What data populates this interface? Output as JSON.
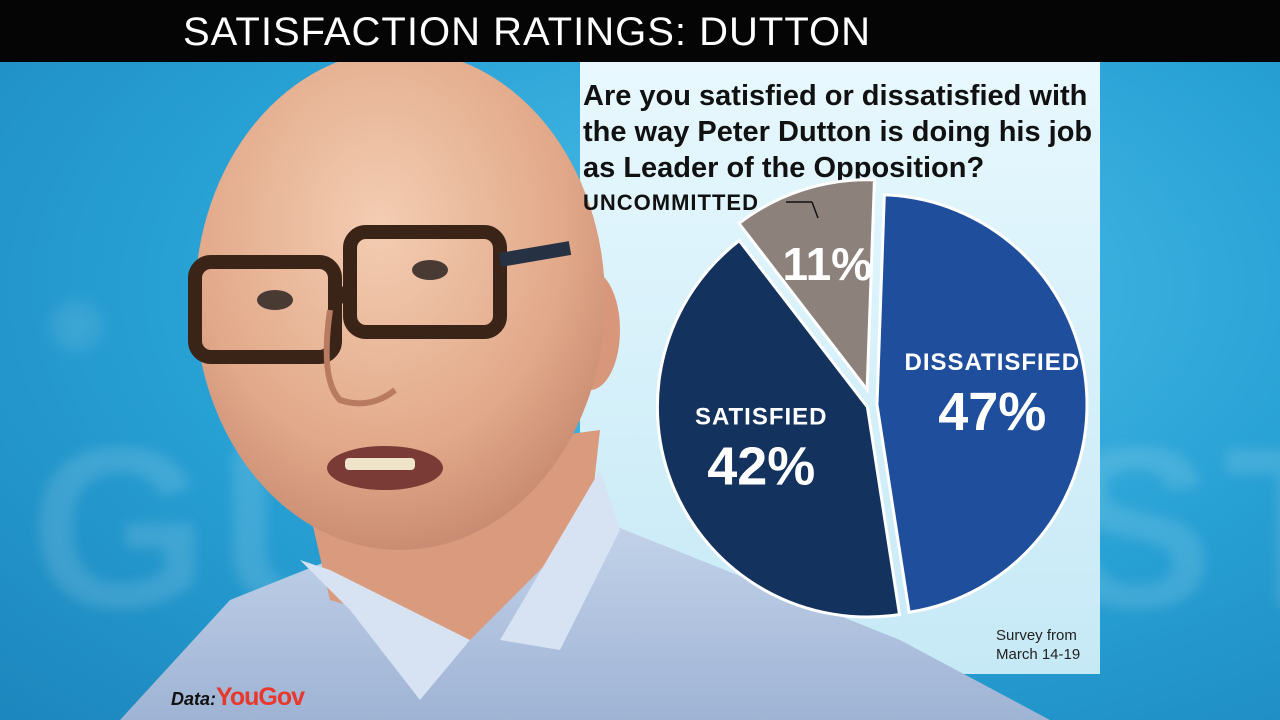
{
  "header": {
    "title": "SATISFACTION RATINGS: DUTTON"
  },
  "question": "Are you satisfied or dissatisfied with the way Peter Dutton is doing his job as Leader of the Opposition?",
  "colors": {
    "dissatisfied": "#1f4e9c",
    "satisfied": "#13325e",
    "uncommitted": "#8d817c",
    "title_bar": "#050505"
  },
  "chart_data": {
    "type": "pie",
    "title": "Are you satisfied or dissatisfied with the way Peter Dutton is doing his job as Leader of the Opposition?",
    "slices": [
      {
        "label": "DISSATISFIED",
        "value": 47,
        "value_label": "47%",
        "color": "#1f4e9c"
      },
      {
        "label": "SATISFIED",
        "value": 42,
        "value_label": "42%",
        "color": "#13325e"
      },
      {
        "label": "UNCOMMITTED",
        "value": 11,
        "value_label": "11%",
        "color": "#8d817c",
        "exploded": true
      }
    ]
  },
  "footnote": {
    "line1": "Survey from",
    "line2": "March 14-19"
  },
  "source": {
    "prefix": "Data:",
    "brand": "YouGov"
  }
}
